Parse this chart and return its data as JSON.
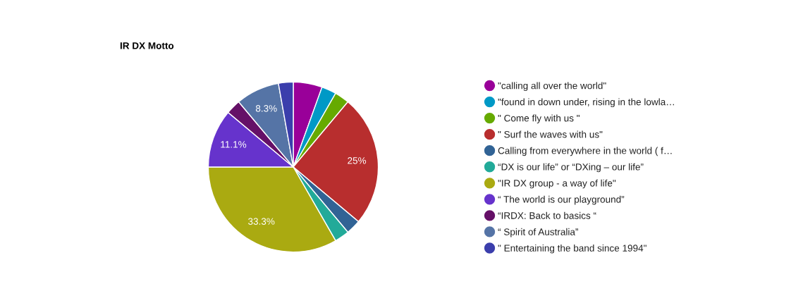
{
  "chart_data": {
    "type": "pie",
    "title": "IR DX Motto",
    "categories": [
      "\"calling all over the world\"",
      "\"found in down under, rising in the lowla…",
      "\" Come fly with us \"",
      "\" Surf the waves with us\"",
      "Calling from everywhere in the world ( f…",
      "“DX is our life” or “DXing – our life”",
      "\"IR DX group - a way of life\"",
      "“ The world is our playground”",
      "“IRDX: Back to basics “",
      "“ Spirit of Australia”",
      "\" Entertaining the band since 1994\""
    ],
    "values": [
      5.5,
      2.8,
      2.8,
      25,
      2.8,
      2.8,
      33.3,
      11.1,
      2.8,
      8.3,
      2.8
    ],
    "colors": [
      "#990099",
      "#0099c6",
      "#66aa00",
      "#b82e2e",
      "#316395",
      "#22aa99",
      "#aaaa11",
      "#6633cc",
      "#651067",
      "#5574a6",
      "#3b3eac"
    ],
    "value_labels": [
      null,
      null,
      null,
      "25%",
      null,
      null,
      "33.3%",
      "11.1%",
      null,
      "8.3%",
      null
    ],
    "legend": "right"
  }
}
